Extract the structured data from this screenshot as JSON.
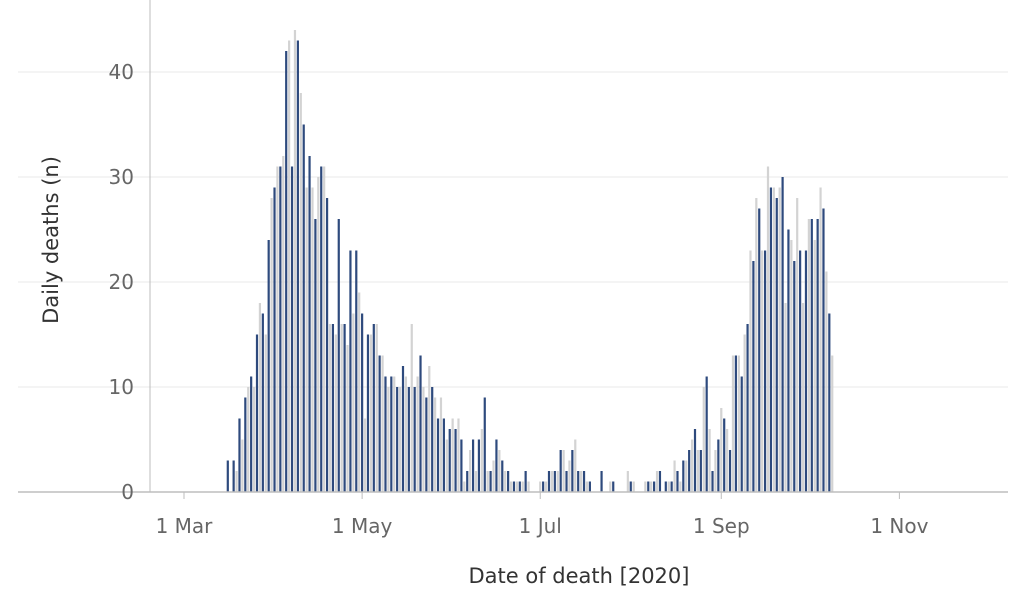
{
  "chart_data": {
    "type": "bar",
    "xlabel": "Date of death [2020]",
    "ylabel": "Daily deaths (n)",
    "ylim": [
      0,
      45
    ],
    "yticks": [
      0,
      10,
      20,
      30,
      40
    ],
    "xticks": [
      {
        "date": "2020-03-01",
        "label": "1 Mar"
      },
      {
        "date": "2020-05-01",
        "label": "1 May"
      },
      {
        "date": "2020-07-01",
        "label": "1 Jul"
      },
      {
        "date": "2020-09-01",
        "label": "1 Sep"
      },
      {
        "date": "2020-11-01",
        "label": "1 Nov"
      }
    ],
    "grid": true,
    "legend": "none",
    "colors": {
      "highlighted": "#2e4a7d",
      "other": "#d3d3d3",
      "grid": "#e8e8e8",
      "axis": "#bdbdbd"
    },
    "first_date": "2020-03-16",
    "highlight_pattern": "every other day",
    "values": [
      3,
      0,
      3,
      2,
      7,
      5,
      9,
      10,
      11,
      10,
      15,
      18,
      17,
      15,
      24,
      28,
      29,
      31,
      31,
      32,
      42,
      43,
      31,
      44,
      43,
      38,
      35,
      29,
      32,
      29,
      26,
      30,
      31,
      31,
      28,
      16,
      16,
      15,
      26,
      16,
      16,
      14,
      23,
      17,
      23,
      19,
      17,
      7,
      15,
      15,
      16,
      16,
      13,
      13,
      11,
      10,
      11,
      11,
      10,
      10,
      12,
      11,
      10,
      16,
      10,
      11,
      13,
      10,
      9,
      12,
      10,
      9,
      7,
      9,
      7,
      5,
      6,
      7,
      6,
      7,
      5,
      1,
      2,
      4,
      5,
      2,
      5,
      6,
      9,
      2,
      2,
      3,
      5,
      4,
      3,
      2,
      2,
      1,
      1,
      1,
      1,
      1,
      2,
      1,
      0,
      0,
      0,
      1,
      1,
      1,
      2,
      2,
      2,
      2,
      4,
      4,
      2,
      3,
      4,
      5,
      2,
      2,
      2,
      1,
      1,
      0,
      0,
      0,
      2,
      0,
      0,
      1,
      1,
      0,
      0,
      0,
      0,
      2,
      1,
      1,
      0,
      0,
      0,
      1,
      1,
      1,
      1,
      2,
      2,
      0,
      1,
      1,
      1,
      3,
      2,
      1,
      3,
      3,
      4,
      5,
      6,
      4,
      4,
      10,
      11,
      6,
      2,
      4,
      5,
      8,
      7,
      6,
      4,
      13,
      13,
      13,
      11,
      15,
      16,
      23,
      22,
      28,
      27,
      23,
      23,
      31,
      29,
      29,
      28,
      29,
      30,
      18,
      25,
      24,
      22,
      28,
      23,
      18,
      23,
      26,
      26,
      24,
      26,
      29,
      27,
      21,
      17,
      13
    ]
  }
}
